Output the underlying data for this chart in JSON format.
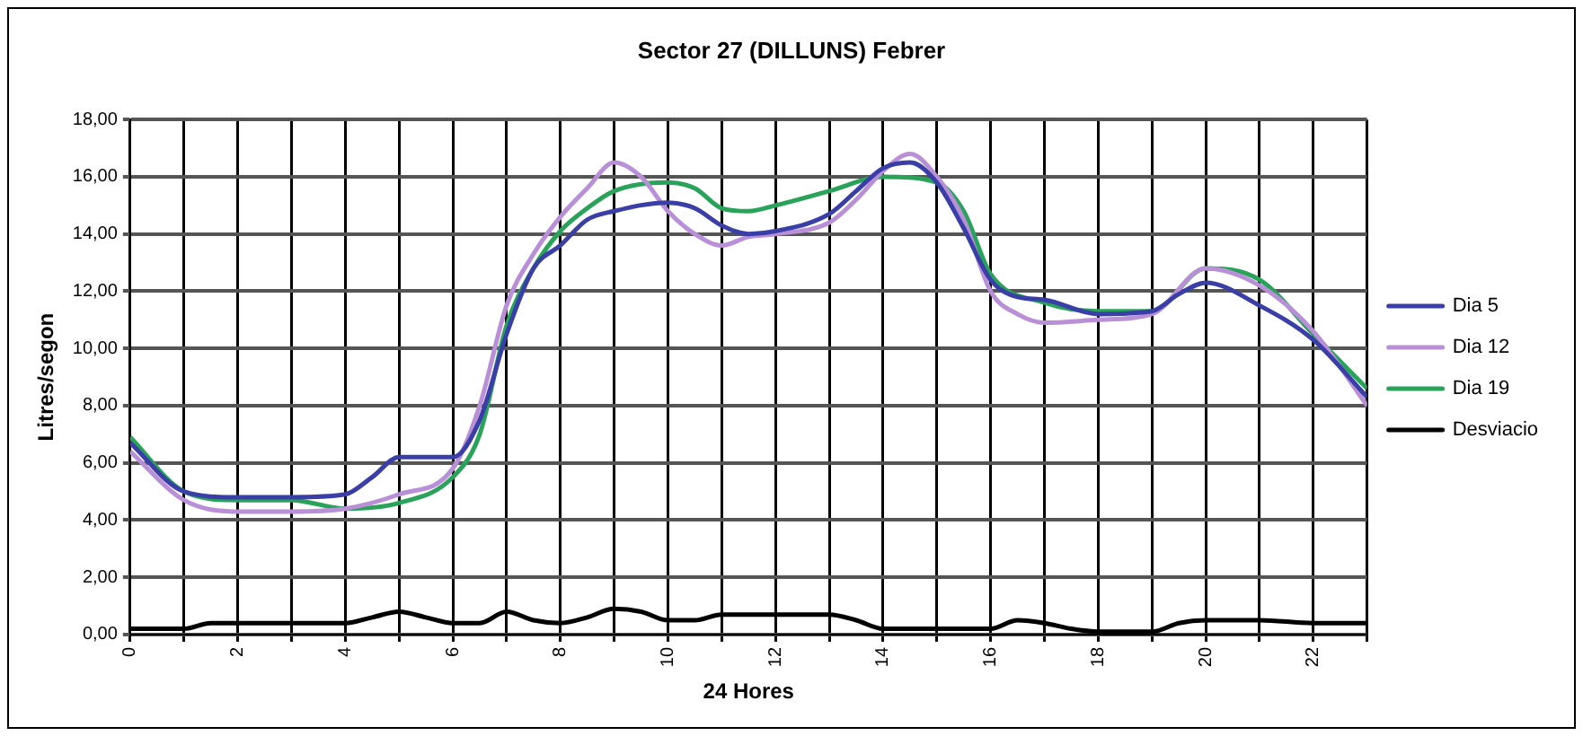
{
  "chart_data": {
    "type": "line",
    "title": "Sector 27 (DILLUNS) Febrer",
    "xlabel": "24 Hores",
    "ylabel": "Litres/segon",
    "xlim": [
      0,
      23
    ],
    "xticks": [
      0,
      {
        "value": 1,
        "label": null
      },
      2,
      {
        "value": 3,
        "label": null
      },
      4,
      {
        "value": 5,
        "label": null
      },
      6,
      {
        "value": 7,
        "label": null
      },
      8,
      {
        "value": 9,
        "label": null
      },
      10,
      {
        "value": 11,
        "label": null
      },
      12,
      {
        "value": 13,
        "label": null
      },
      14,
      {
        "value": 15,
        "label": null
      },
      16,
      {
        "value": 17,
        "label": null
      },
      18,
      {
        "value": 19,
        "label": null
      },
      20,
      {
        "value": 21,
        "label": null
      },
      22,
      {
        "value": 23,
        "label": null
      }
    ],
    "ylim": [
      0,
      18
    ],
    "yticks": [
      {
        "value": 0,
        "label": "0,00"
      },
      {
        "value": 2,
        "label": "2,00"
      },
      {
        "value": 4,
        "label": "4,00"
      },
      {
        "value": 6,
        "label": "6,00"
      },
      {
        "value": 8,
        "label": "8,00"
      },
      {
        "value": 10,
        "label": "10,00"
      },
      {
        "value": 12,
        "label": "12,00"
      },
      {
        "value": 14,
        "label": "14,00"
      },
      {
        "value": 16,
        "label": "16,00"
      },
      {
        "value": 18,
        "label": "18,00"
      }
    ],
    "grid": true,
    "legend": "right",
    "marker": "none",
    "line_style": "solid",
    "series": [
      {
        "name": "Dia 5",
        "color": "#3a3fa8",
        "x": [
          0,
          1,
          2,
          3,
          4,
          4.5,
          5,
          6,
          6.5,
          7,
          7.5,
          8,
          8.5,
          9,
          10,
          10.5,
          11,
          11.5,
          12,
          13,
          13.5,
          14,
          14.5,
          15,
          15.5,
          16,
          16.5,
          17,
          18,
          19,
          19.5,
          20,
          21,
          22,
          23
        ],
        "values": [
          6.7,
          5.0,
          4.8,
          4.8,
          4.9,
          5.5,
          6.2,
          6.2,
          7.5,
          10.5,
          12.8,
          13.6,
          14.5,
          14.8,
          15.1,
          14.9,
          14.3,
          14.0,
          14.1,
          14.7,
          15.5,
          16.3,
          16.5,
          15.8,
          14.2,
          12.4,
          11.8,
          11.7,
          11.2,
          11.3,
          11.9,
          12.3,
          11.5,
          10.3,
          8.3
        ]
      },
      {
        "name": "Dia 12",
        "color": "#b98fd8",
        "x": [
          0,
          1,
          2,
          3,
          4,
          5,
          6,
          6.5,
          7,
          7.5,
          8,
          8.5,
          9,
          9.5,
          10,
          10.5,
          11,
          11.5,
          12,
          13,
          13.5,
          14,
          14.5,
          15,
          15.5,
          16,
          16.5,
          17,
          18,
          19,
          20,
          21,
          22,
          23
        ],
        "values": [
          6.4,
          4.7,
          4.3,
          4.3,
          4.4,
          4.9,
          5.8,
          8.0,
          11.5,
          13.3,
          14.6,
          15.6,
          16.5,
          16.0,
          14.8,
          14.0,
          13.6,
          13.9,
          14.0,
          14.4,
          15.2,
          16.2,
          16.8,
          16.0,
          14.5,
          12.0,
          11.2,
          10.9,
          11.0,
          11.2,
          12.8,
          12.2,
          10.6,
          8.0
        ]
      },
      {
        "name": "Dia 19",
        "color": "#2aa35a",
        "x": [
          0,
          1,
          2,
          3,
          4,
          5,
          6,
          6.5,
          7,
          7.5,
          8,
          8.5,
          9,
          10,
          10.5,
          11,
          11.5,
          12,
          13,
          14,
          15,
          15.5,
          16,
          17,
          18,
          19,
          20,
          21,
          22,
          23
        ],
        "values": [
          6.9,
          5.0,
          4.7,
          4.7,
          4.4,
          4.6,
          5.5,
          7.0,
          10.8,
          12.8,
          14.1,
          14.9,
          15.5,
          15.8,
          15.6,
          14.9,
          14.8,
          15.0,
          15.5,
          16.0,
          15.8,
          14.8,
          12.6,
          11.6,
          11.3,
          11.3,
          12.8,
          12.4,
          10.5,
          8.6
        ]
      },
      {
        "name": "Desviacio",
        "color": "#000000",
        "x": [
          0,
          1,
          1.5,
          4,
          4.5,
          5,
          5.5,
          6,
          6.5,
          7,
          7.5,
          8,
          8.5,
          9,
          9.5,
          10,
          10.5,
          11,
          13,
          13.5,
          14,
          16,
          16.5,
          17,
          17.5,
          18,
          19,
          19.5,
          20,
          21,
          22,
          23
        ],
        "values": [
          0.2,
          0.2,
          0.4,
          0.4,
          0.6,
          0.8,
          0.6,
          0.4,
          0.4,
          0.8,
          0.5,
          0.4,
          0.6,
          0.9,
          0.8,
          0.5,
          0.5,
          0.7,
          0.7,
          0.5,
          0.2,
          0.2,
          0.5,
          0.4,
          0.2,
          0.1,
          0.1,
          0.4,
          0.5,
          0.5,
          0.4,
          0.4
        ]
      }
    ]
  }
}
